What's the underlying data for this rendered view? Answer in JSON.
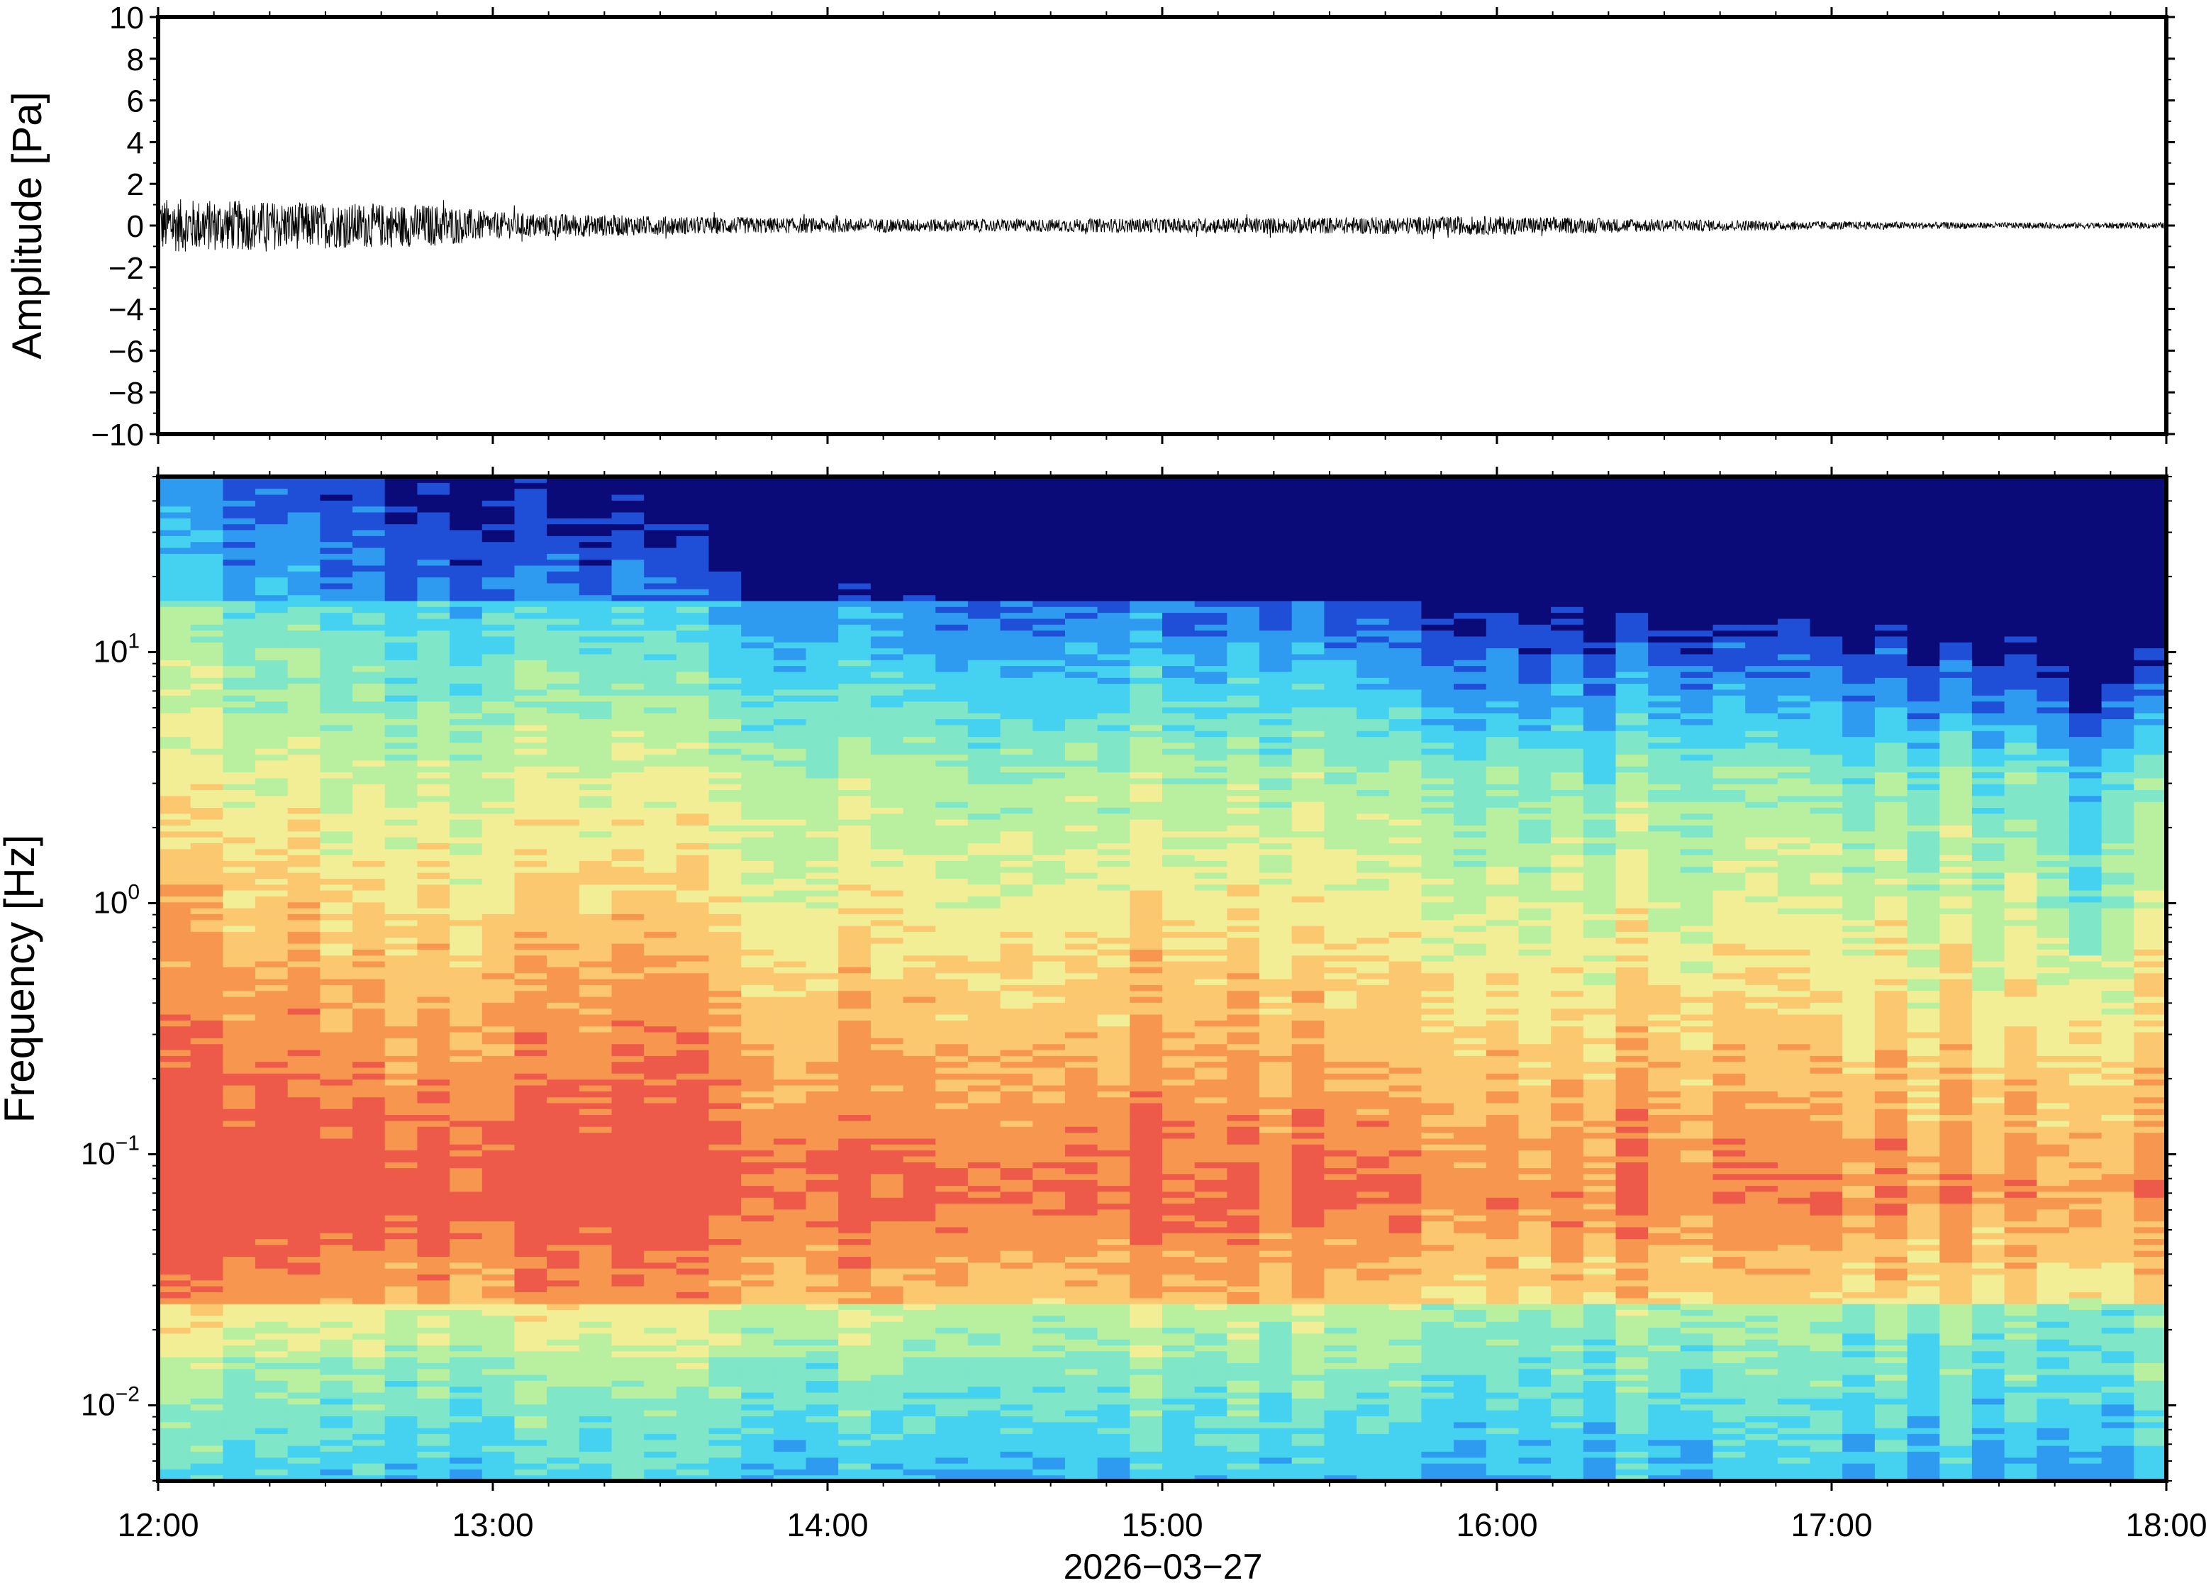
{
  "chart_data": [
    {
      "type": "line",
      "ylabel": "Amplitude [Pa]",
      "ylim": [
        -10,
        10
      ],
      "y_ticks": [
        "10",
        "8",
        "6",
        "4",
        "2",
        "0",
        "−2",
        "−4",
        "−6",
        "−8",
        "−10"
      ],
      "y_tick_values": [
        10,
        8,
        6,
        4,
        2,
        0,
        -2,
        -4,
        -6,
        -8,
        -10
      ],
      "xlim": [
        "12:00",
        "18:00"
      ],
      "grid": false,
      "series": [
        {
          "envelope_time_h": [
            12.0,
            12.5,
            12.85,
            13.0,
            13.5,
            14.0,
            14.5,
            15.0,
            15.5,
            16.0,
            16.5,
            17.0,
            17.5,
            18.0
          ],
          "envelope_pa": [
            1.3,
            1.1,
            1.0,
            0.65,
            0.45,
            0.35,
            0.3,
            0.35,
            0.4,
            0.45,
            0.3,
            0.2,
            0.15,
            0.15
          ]
        }
      ]
    },
    {
      "type": "heatmap",
      "xlabel": "2026−03−27",
      "ylabel": "Frequency [Hz]",
      "x_ticks": [
        "12:00",
        "13:00",
        "14:00",
        "15:00",
        "16:00",
        "17:00",
        "18:00"
      ],
      "y_scale": "log",
      "ylim": [
        0.005,
        50
      ],
      "y_ticks": [
        {
          "base": "10",
          "exp": "1",
          "value": 10
        },
        {
          "base": "10",
          "exp": "0",
          "value": 1
        },
        {
          "base": "10",
          "exp": "−1",
          "value": 0.1
        },
        {
          "base": "10",
          "exp": "−2",
          "value": 0.01
        }
      ],
      "colormap": "jet",
      "colors": [
        "#0a0a78",
        "#1f4fd6",
        "#2f9bf0",
        "#45d2f0",
        "#7fe6c8",
        "#b8f0a0",
        "#f2ee96",
        "#fbc870",
        "#f7964f",
        "#ee5a4a"
      ]
    }
  ]
}
